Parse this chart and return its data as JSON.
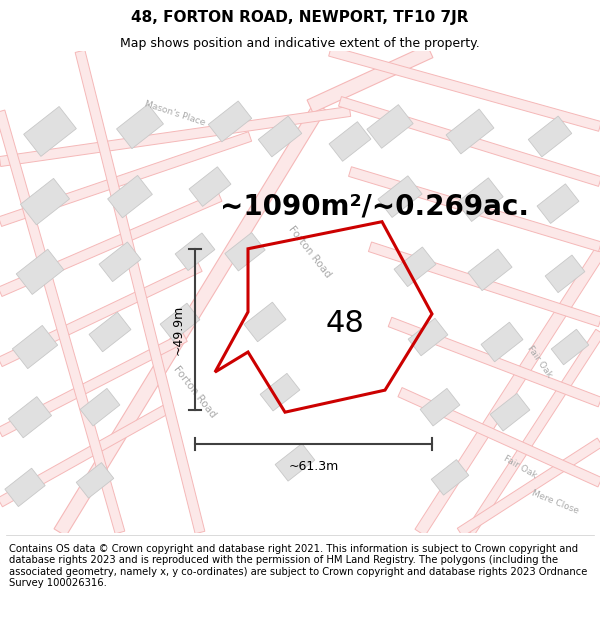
{
  "title": "48, FORTON ROAD, NEWPORT, TF10 7JR",
  "subtitle": "Map shows position and indicative extent of the property.",
  "area_text": "~1090m²/~0.269ac.",
  "label_48": "48",
  "dim_width": "~61.3m",
  "dim_height": "~49.9m",
  "footer": "Contains OS data © Crown copyright and database right 2021. This information is subject to Crown copyright and database rights 2023 and is reproduced with the permission of HM Land Registry. The polygons (including the associated geometry, namely x, y co-ordinates) are subject to Crown copyright and database rights 2023 Ordnance Survey 100026316.",
  "bg_color": "#ffffff",
  "map_bg": "#ffffff",
  "road_color": "#f5b8b8",
  "road_fill": "#fce8e8",
  "building_color": "#e0e0e0",
  "building_edge": "#c8c8c8",
  "highlight_color": "#cc0000",
  "dim_color": "#404040",
  "title_fontsize": 11,
  "subtitle_fontsize": 9,
  "area_fontsize": 20,
  "label_fontsize": 22,
  "footer_fontsize": 7.2,
  "road_label_color": "#aaaaaa",
  "road_label_fontsize": 7.5
}
